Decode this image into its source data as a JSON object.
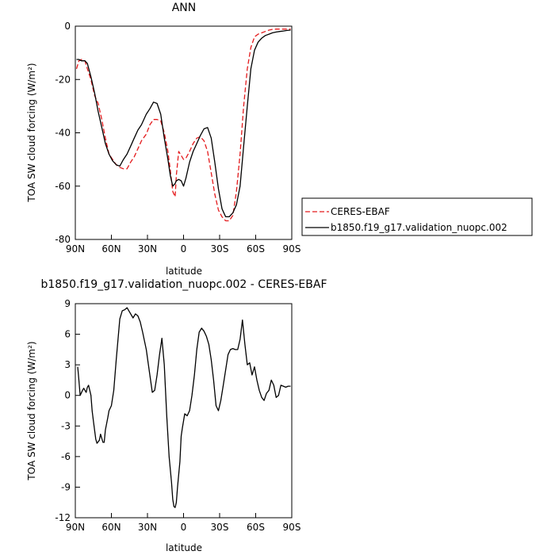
{
  "chart_data": [
    {
      "type": "line",
      "title": "ANN",
      "xlabel": "latitude",
      "ylabel": "TOA SW cloud forcing (W/m²)",
      "xlim": [
        90,
        -90
      ],
      "ylim": [
        -80,
        0
      ],
      "x_ticks": [
        {
          "value": 90,
          "label": "90N"
        },
        {
          "value": 60,
          "label": "60N"
        },
        {
          "value": 30,
          "label": "30N"
        },
        {
          "value": 0,
          "label": "0"
        },
        {
          "value": -30,
          "label": "30S"
        },
        {
          "value": -60,
          "label": "60S"
        },
        {
          "value": -90,
          "label": "90S"
        }
      ],
      "y_ticks": [
        0,
        -20,
        -40,
        -60,
        -80
      ],
      "legend": "right",
      "series": [
        {
          "name": "CERES-EBAF",
          "color": "#e41a1c",
          "dash": true,
          "x": [
            89,
            87,
            85,
            82,
            80,
            77,
            74,
            71,
            68,
            65,
            62,
            59,
            56,
            53,
            50,
            47,
            44,
            41,
            38,
            35,
            31,
            28,
            25,
            22,
            19,
            16,
            13,
            11,
            9,
            7,
            6,
            4,
            2,
            0,
            -2,
            -5,
            -8,
            -11,
            -14,
            -17,
            -20,
            -23,
            -26,
            -29,
            -32,
            -35,
            -38,
            -41,
            -44,
            -47,
            -50,
            -53,
            -56,
            -59,
            -62,
            -65,
            -68,
            -71,
            -74,
            -77,
            -80,
            -83,
            -86,
            -89
          ],
          "y": [
            -16,
            -13,
            -12.5,
            -13,
            -16,
            -20,
            -26,
            -29,
            -35,
            -42,
            -48,
            -50,
            -52,
            -53,
            -53.5,
            -53.5,
            -51,
            -49,
            -46,
            -43,
            -40.5,
            -37,
            -35,
            -35,
            -35.5,
            -40,
            -47,
            -54,
            -62,
            -64,
            -56,
            -47,
            -48.5,
            -50,
            -49.5,
            -47,
            -44,
            -42,
            -41.5,
            -43,
            -47,
            -55,
            -63,
            -69,
            -71.5,
            -73,
            -73,
            -71,
            -62,
            -48,
            -30,
            -16,
            -8,
            -4,
            -3,
            -2.5,
            -2,
            -1.5,
            -1.2,
            -1.1,
            -1.1,
            -1.1,
            -1.1,
            -1.1
          ]
        },
        {
          "name": "b1850.f19_g17.validation_nuopc.002",
          "color": "#000000",
          "dash": false,
          "x": [
            89,
            87,
            85,
            82,
            80,
            77,
            74,
            71,
            68,
            65,
            62,
            59,
            56,
            53,
            50,
            47,
            44,
            41,
            38,
            35,
            31,
            28,
            25,
            22,
            19,
            16,
            13,
            11,
            9,
            7,
            6,
            4,
            2,
            0,
            -2,
            -5,
            -8,
            -11,
            -14,
            -17,
            -20,
            -23,
            -26,
            -29,
            -32,
            -35,
            -38,
            -41,
            -44,
            -47,
            -50,
            -53,
            -56,
            -59,
            -62,
            -65,
            -68,
            -71,
            -74,
            -77,
            -80,
            -83,
            -86,
            -89
          ],
          "y": [
            -12.5,
            -12.5,
            -13,
            -13,
            -14,
            -19,
            -25,
            -32,
            -38,
            -44,
            -48,
            -50.5,
            -52,
            -52.5,
            -50,
            -48,
            -45,
            -42,
            -39,
            -37,
            -33,
            -31,
            -28.5,
            -29,
            -33,
            -42,
            -50,
            -56,
            -60,
            -59,
            -58,
            -57.5,
            -58,
            -60,
            -57,
            -51,
            -47,
            -44,
            -41,
            -38.5,
            -38,
            -42,
            -51,
            -61,
            -68.5,
            -71.5,
            -71.5,
            -70,
            -67,
            -60,
            -45,
            -30,
            -16,
            -9,
            -6,
            -4.5,
            -3.5,
            -3,
            -2.5,
            -2.2,
            -2,
            -1.8,
            -1.6,
            -1.5
          ]
        }
      ]
    },
    {
      "type": "line",
      "title": "b1850.f19_g17.validation_nuopc.002 - CERES-EBAF",
      "xlabel": "latitude",
      "ylabel": "TOA SW cloud forcing (W/m²)",
      "xlim": [
        90,
        -90
      ],
      "ylim": [
        -12,
        9
      ],
      "x_ticks": [
        {
          "value": 90,
          "label": "90N"
        },
        {
          "value": 60,
          "label": "60N"
        },
        {
          "value": 30,
          "label": "30N"
        },
        {
          "value": 0,
          "label": "0"
        },
        {
          "value": -30,
          "label": "30S"
        },
        {
          "value": -60,
          "label": "60S"
        },
        {
          "value": -90,
          "label": "90S"
        }
      ],
      "y_ticks": [
        9,
        6,
        3,
        0,
        -3,
        -6,
        -9,
        -12
      ],
      "series": [
        {
          "color": "#000000",
          "dash": false,
          "x": [
            88,
            87,
            86,
            84,
            83,
            81,
            80,
            79,
            77,
            76,
            75,
            73,
            72,
            70,
            69,
            67,
            66,
            65,
            63,
            62,
            60,
            58,
            56,
            53,
            51,
            49,
            47,
            45,
            42,
            40,
            38,
            36,
            34,
            31,
            28,
            26,
            24,
            22,
            20,
            18,
            16,
            14,
            12,
            10,
            9,
            8,
            7,
            6,
            5,
            3,
            2,
            1,
            0,
            -1,
            -3,
            -5,
            -7,
            -9,
            -11,
            -13,
            -15,
            -17,
            -19,
            -21,
            -23,
            -25,
            -27,
            -29,
            -31,
            -33,
            -35,
            -37,
            -39,
            -41,
            -43,
            -45,
            -47,
            -49,
            -51,
            -53,
            -55,
            -57,
            -59,
            -61,
            -63,
            -65,
            -67,
            -69,
            -71,
            -73,
            -75,
            -77,
            -79,
            -81,
            -83,
            -85,
            -87,
            -89
          ],
          "y": [
            2.8,
            1.5,
            0,
            0.5,
            0.7,
            0.3,
            0.8,
            1,
            0,
            -1.5,
            -2.5,
            -4.3,
            -4.7,
            -4.4,
            -3.8,
            -4.6,
            -4.6,
            -3.4,
            -2.2,
            -1.5,
            -1,
            0.5,
            3.5,
            7.5,
            8.3,
            8.4,
            8.6,
            8.2,
            7.6,
            8,
            7.8,
            7.2,
            6.2,
            4.5,
            2,
            0.3,
            0.5,
            2,
            4,
            5.6,
            3,
            -2,
            -6,
            -8.5,
            -10.2,
            -10.9,
            -11,
            -10.5,
            -9,
            -6.5,
            -4,
            -3.2,
            -2.5,
            -1.8,
            -2,
            -1.5,
            0,
            2,
            4.5,
            6.2,
            6.6,
            6.3,
            5.8,
            5,
            3.5,
            1.5,
            -1,
            -1.5,
            -0.5,
            1,
            2.5,
            4,
            4.5,
            4.6,
            4.5,
            4.5,
            5.5,
            7.4,
            5,
            3,
            3.2,
            2,
            2.8,
            1.5,
            0.5,
            -0.2,
            -0.5,
            0.2,
            0.5,
            1.5,
            1,
            -0.2,
            0,
            1,
            0.9,
            0.8,
            0.9,
            0.9
          ]
        }
      ]
    }
  ]
}
